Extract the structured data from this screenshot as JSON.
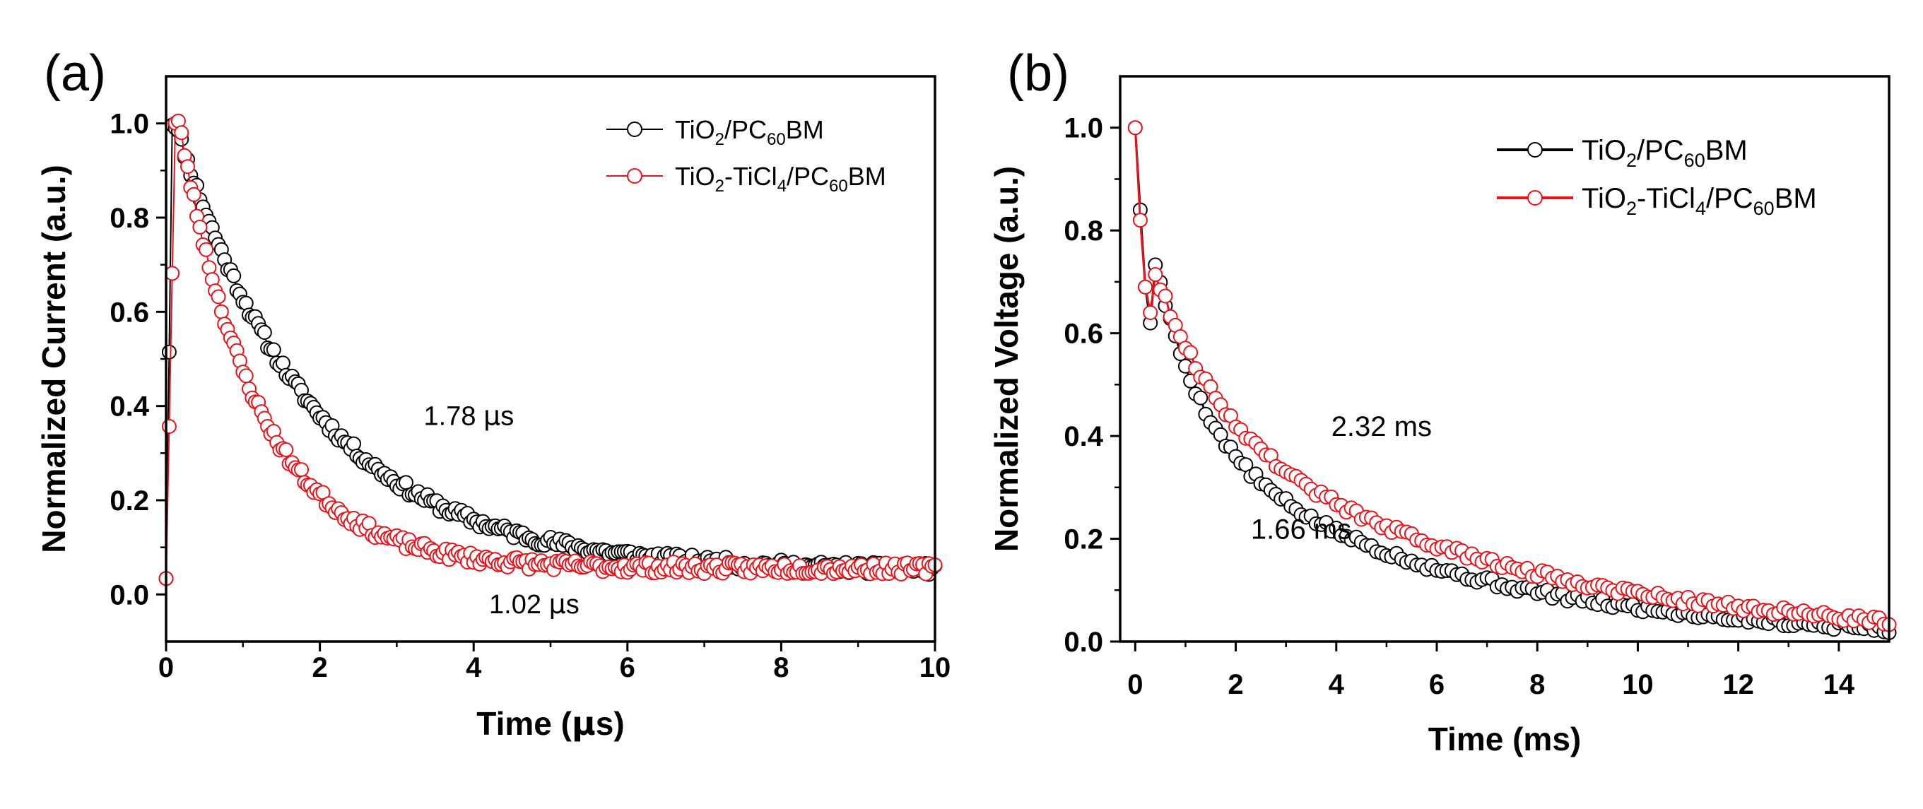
{
  "chart_data": [
    {
      "panel_label": "(a)",
      "type": "scatter",
      "xlabel_parts": [
        "Time (",
        "μ",
        "s)"
      ],
      "xlabel": "Time (μs)",
      "ylabel": "Normalized Current (a.u.)",
      "xlim": [
        0,
        10
      ],
      "ylim": [
        -0.1,
        1.1
      ],
      "xticks": [
        0,
        2,
        4,
        6,
        8,
        10
      ],
      "xtick_labels": [
        "0",
        "2",
        "4",
        "6",
        "8",
        "10"
      ],
      "yticks": [
        0.0,
        0.2,
        0.4,
        0.6,
        0.8,
        1.0
      ],
      "ytick_labels": [
        "0.0",
        "0.2",
        "0.4",
        "0.6",
        "0.8",
        "1.0"
      ],
      "legend_position": "top-right",
      "series": [
        {
          "name": "TiO2/PC60BM",
          "legend_parts": [
            "TiO",
            "2",
            "/PC",
            "60",
            "BM"
          ],
          "color": "#000000",
          "marker": "open-circle",
          "line": true,
          "decay": {
            "onset": 0.0,
            "rise_end": 0.08,
            "start": 0.04,
            "peak": 1.0,
            "tau": 1.78,
            "floor": 0.05,
            "t0": 0.12,
            "noise": 0.012,
            "seed": 11
          },
          "sampling": {
            "x_start": 0.0,
            "x_end": 10.0,
            "step": 0.04
          }
        },
        {
          "name": "TiO2-TiCl4/PC60BM",
          "legend_parts": [
            "TiO",
            "2",
            "-TiCl",
            "4",
            "/PC",
            "60",
            "BM"
          ],
          "color": "#e8121a",
          "marker": "open-circle",
          "line": true,
          "decay": {
            "onset": 0.0,
            "rise_end": 0.12,
            "start": 0.04,
            "peak": 1.0,
            "tau": 1.02,
            "floor": 0.055,
            "t0": 0.17,
            "noise": 0.012,
            "seed": 23
          },
          "sampling": {
            "x_start": 0.0,
            "x_end": 10.0,
            "step": 0.04
          }
        }
      ],
      "annotations": [
        {
          "text": "1.78 μs",
          "parts": [
            "1.78 ",
            "μ",
            "s"
          ],
          "x": 3.35,
          "y": 0.36,
          "color": "#000000"
        },
        {
          "text": "1.02 μs",
          "parts": [
            "1.02 ",
            "μ",
            "s"
          ],
          "x": 4.2,
          "y": -0.04,
          "color": "#e8121a"
        }
      ]
    },
    {
      "panel_label": "(b)",
      "type": "scatter",
      "xlabel": "Time (ms)",
      "ylabel": "Normalized Voltage (a.u.)",
      "xlim": [
        -0.3,
        15
      ],
      "ylim": [
        0,
        1.1
      ],
      "xticks": [
        0,
        2,
        4,
        6,
        8,
        10,
        12,
        14
      ],
      "xtick_labels": [
        "0",
        "2",
        "4",
        "6",
        "8",
        "10",
        "12",
        "14"
      ],
      "yticks": [
        0.0,
        0.2,
        0.4,
        0.6,
        0.8,
        1.0
      ],
      "ytick_labels": [
        "0.0",
        "0.2",
        "0.4",
        "0.6",
        "0.8",
        "1.0"
      ],
      "legend_position": "top-right",
      "series": [
        {
          "name": "TiO2/PC60BM",
          "legend_parts": [
            "TiO",
            "2",
            "/PC",
            "60",
            "BM"
          ],
          "color": "#000000",
          "marker": "open-circle",
          "line": true,
          "x_first": [
            0.0,
            0.1,
            0.2,
            0.3
          ],
          "y_first": [
            1.0,
            0.84,
            0.69,
            0.62
          ],
          "decay": {
            "fast_amp": 0.5,
            "fast_tau": 0.9,
            "slow_amp": 0.45,
            "slow_tau": 5.2,
            "noise": 0.008,
            "seed": 5
          },
          "sampling": {
            "x_start": 0.4,
            "x_end": 15.0,
            "step": 0.1
          }
        },
        {
          "name": "TiO2-TiCl4/PC60BM",
          "legend_parts": [
            "TiO",
            "2",
            "-TiCl",
            "4",
            "/PC",
            "60",
            "BM"
          ],
          "color": "#e8121a",
          "marker": "open-circle",
          "line": true,
          "x_first": [
            0.0,
            0.1,
            0.2,
            0.3
          ],
          "y_first": [
            1.0,
            0.82,
            0.69,
            0.64
          ],
          "decay": {
            "fast_amp": 0.35,
            "fast_tau": 1.2,
            "slow_amp": 0.5,
            "slow_tau": 6.0,
            "noise": 0.008,
            "seed": 9
          },
          "sampling": {
            "x_start": 0.4,
            "x_end": 15.0,
            "step": 0.1
          }
        }
      ],
      "annotations": [
        {
          "text": "2.32 ms",
          "parts": [
            "2.32 ms"
          ],
          "x": 3.9,
          "y": 0.4,
          "color": "#e8121a"
        },
        {
          "text": "1.66 ms",
          "parts": [
            "1.66 ms"
          ],
          "x": 2.3,
          "y": 0.2,
          "color": "#000000"
        }
      ]
    }
  ]
}
